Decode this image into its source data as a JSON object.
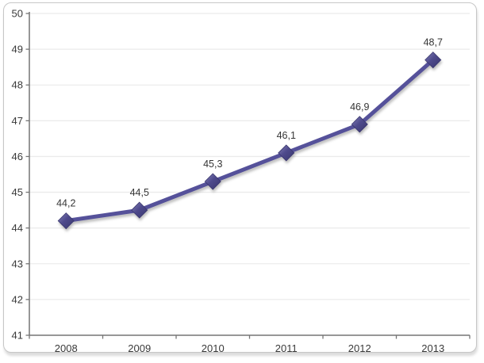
{
  "chart_data": {
    "type": "line",
    "title": "",
    "categories": [
      "2008",
      "2009",
      "2010",
      "2011",
      "2012",
      "2013"
    ],
    "series": [
      {
        "name": "",
        "values": [
          44.2,
          44.5,
          45.3,
          46.1,
          46.9,
          48.7
        ],
        "point_labels": [
          "44,2",
          "44,5",
          "45,3",
          "46,1",
          "46,9",
          "48,7"
        ]
      }
    ],
    "xlabel": "",
    "ylabel": "",
    "ylim": [
      41,
      50
    ],
    "ytick_step": 1,
    "ytick_labels": [
      "41",
      "42",
      "43",
      "44",
      "45",
      "46",
      "47",
      "48",
      "49",
      "50"
    ],
    "grid": true,
    "legend_position": "none",
    "marker_shape": "diamond",
    "colors": {
      "line": "#55519A",
      "marker_mid": "#4E4A8C",
      "marker_light": "#8температ682B8",
      "marker_highlight": "#8682B8",
      "marker_shadow_edge": "#39366E",
      "gridline": "#ebebeb",
      "axis": "#757575",
      "tick_text": "#3a3a3a",
      "data_label_text": "#353535",
      "frame_border": "#c7c7c7",
      "background": "#ffffff"
    }
  }
}
